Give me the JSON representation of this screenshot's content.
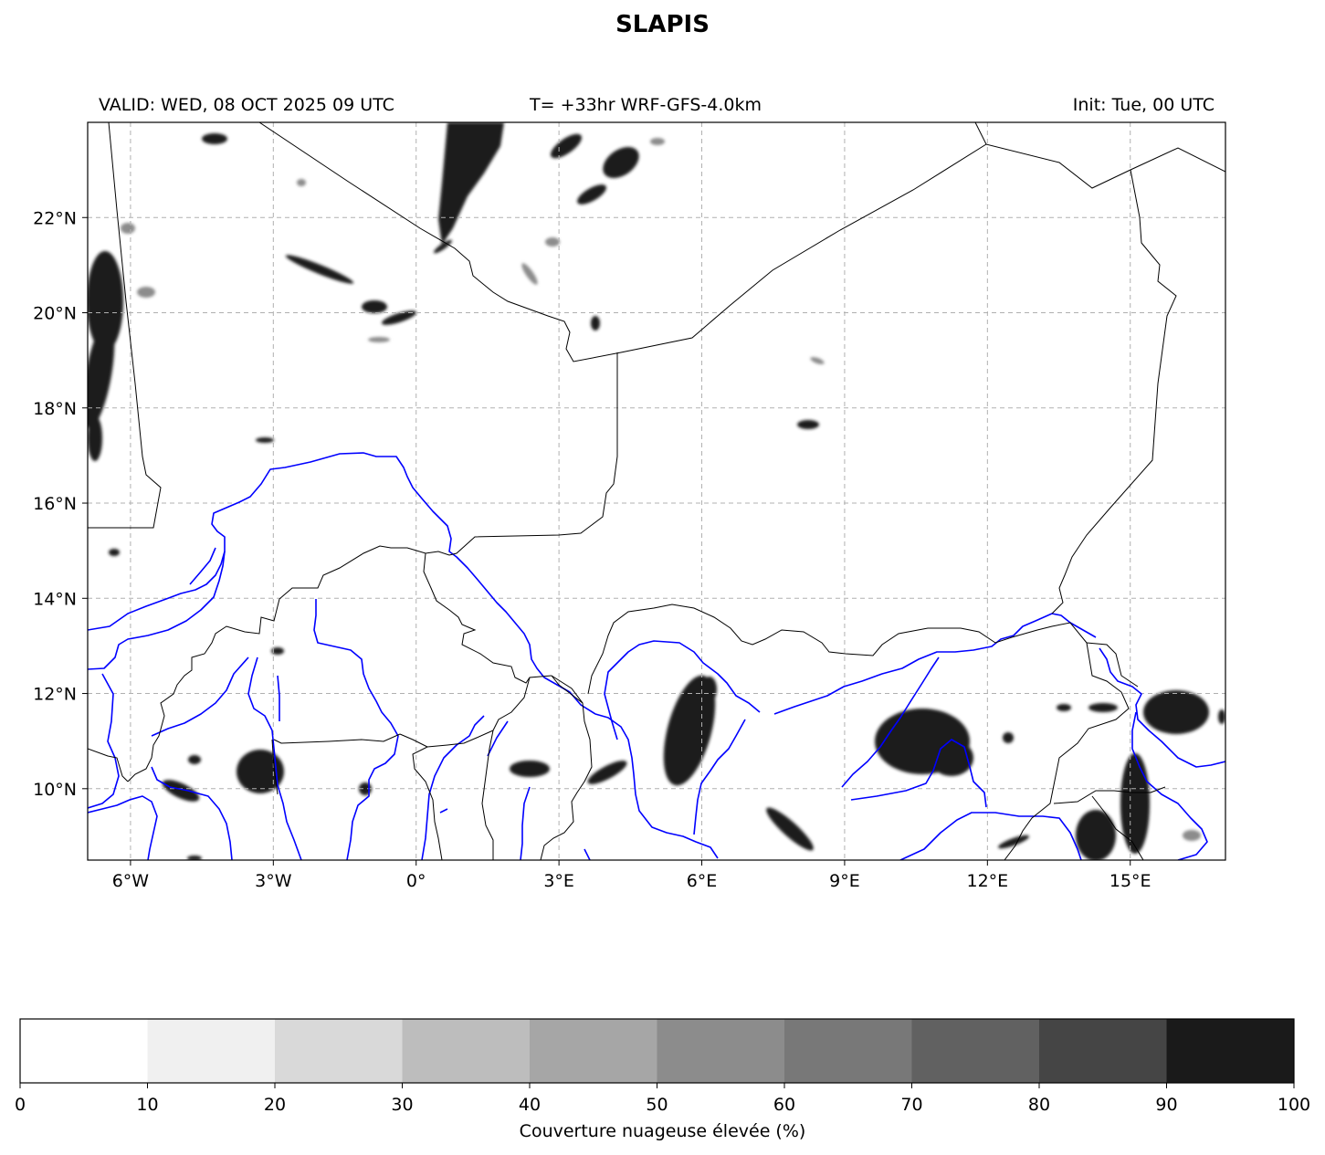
{
  "title": "SLAPIS",
  "header": {
    "valid": "VALID: WED, 08 OCT 2025 09 UTC",
    "forecast": "T= +33hr WRF-GFS-4.0km",
    "init": "Init: Tue, 00 UTC"
  },
  "map": {
    "lon_range": [
      -6.9,
      17.0
    ],
    "lat_range": [
      8.5,
      24.0
    ],
    "lon_ticks": [
      {
        "value": -6,
        "label": "6°W"
      },
      {
        "value": -3,
        "label": "3°W"
      },
      {
        "value": 0,
        "label": "0°"
      },
      {
        "value": 3,
        "label": "3°E"
      },
      {
        "value": 6,
        "label": "6°E"
      },
      {
        "value": 9,
        "label": "9°E"
      },
      {
        "value": 12,
        "label": "12°E"
      },
      {
        "value": 15,
        "label": "15°E"
      }
    ],
    "lat_ticks": [
      {
        "value": 10,
        "label": "10°N"
      },
      {
        "value": 12,
        "label": "12°N"
      },
      {
        "value": 14,
        "label": "14°N"
      },
      {
        "value": 16,
        "label": "16°N"
      },
      {
        "value": 18,
        "label": "18°N"
      },
      {
        "value": 20,
        "label": "20°N"
      },
      {
        "value": 22,
        "label": "22°N"
      }
    ],
    "gridlines": true,
    "border_color": "#000000",
    "river_color": "#0000ff"
  },
  "colorbar": {
    "label": "Couverture nuageuse élevée (%)",
    "ticks": [
      "0",
      "10",
      "20",
      "30",
      "40",
      "50",
      "60",
      "70",
      "80",
      "90",
      "100"
    ],
    "colors": [
      "#ffffff",
      "#f0f0f0",
      "#d9d9d9",
      "#bdbdbd",
      "#a6a6a6",
      "#8c8c8c",
      "#787878",
      "#616161",
      "#454545",
      "#1a1a1a"
    ]
  }
}
